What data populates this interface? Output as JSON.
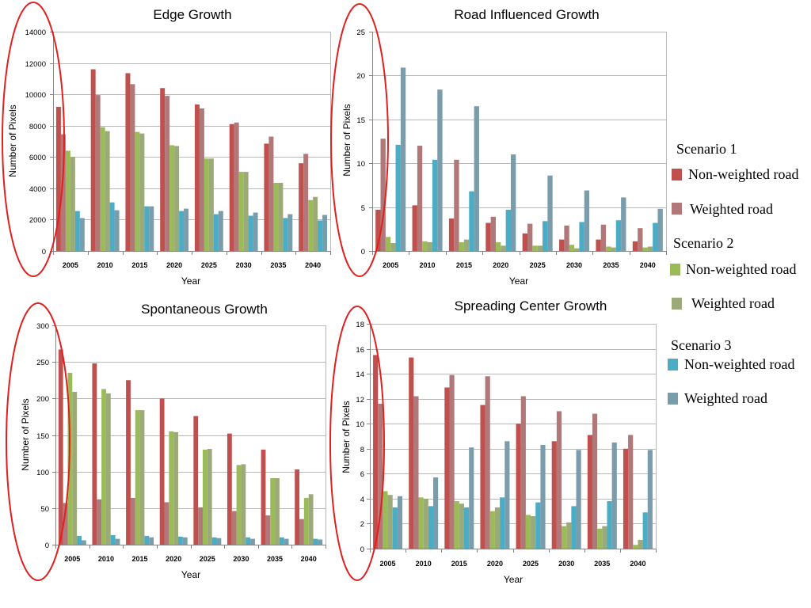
{
  "chart_data": [
    {
      "type": "bar",
      "title": "Edge Growth",
      "xlabel": "Year",
      "ylabel": "Number of Pixels",
      "categories": [
        "2005",
        "2010",
        "2015",
        "2020",
        "2025",
        "2030",
        "2035",
        "2040"
      ],
      "ylim": [
        0,
        14000
      ],
      "yticks": [
        0,
        2000,
        4000,
        6000,
        8000,
        10000,
        12000,
        14000
      ],
      "grid": true,
      "legend": "right",
      "series": [
        {
          "scenario": "Scenario 1",
          "name": "Non-weighted road",
          "color": "#c0504d",
          "values": [
            9200,
            11600,
            11350,
            10400,
            9350,
            8100,
            6850,
            5600
          ]
        },
        {
          "scenario": "Scenario 1",
          "name": "Weighted road",
          "color": "#b07878",
          "values": [
            7450,
            9950,
            10650,
            9900,
            9100,
            8200,
            7300,
            6200
          ]
        },
        {
          "scenario": "Scenario 2",
          "name": "Non-weighted road",
          "color": "#9bbb59",
          "values": [
            6400,
            7900,
            7600,
            6750,
            5900,
            5050,
            4350,
            3250
          ]
        },
        {
          "scenario": "Scenario 2",
          "name": "Weighted road",
          "color": "#9baa78",
          "values": [
            6000,
            7650,
            7500,
            6700,
            5900,
            5050,
            4350,
            3450
          ]
        },
        {
          "scenario": "Scenario 3",
          "name": "Non-weighted road",
          "color": "#4bacc6",
          "values": [
            2550,
            3100,
            2850,
            2550,
            2350,
            2250,
            2100,
            1950
          ]
        },
        {
          "scenario": "Scenario 3",
          "name": "Weighted road",
          "color": "#7a9dac",
          "values": [
            2100,
            2600,
            2850,
            2700,
            2550,
            2450,
            2350,
            2300
          ]
        }
      ]
    },
    {
      "type": "bar",
      "title": "Road Influenced Growth",
      "xlabel": "Year",
      "ylabel": "Number of Pixels",
      "categories": [
        "2005",
        "2010",
        "2015",
        "2020",
        "2025",
        "2030",
        "2035",
        "2040"
      ],
      "ylim": [
        0,
        25
      ],
      "yticks": [
        0,
        5,
        10,
        15,
        20,
        25
      ],
      "grid": true,
      "legend": "right",
      "series": [
        {
          "scenario": "Scenario 1",
          "name": "Non-weighted road",
          "color": "#c0504d",
          "values": [
            4.7,
            5.2,
            3.7,
            3.2,
            2.0,
            1.3,
            1.3,
            1.1
          ]
        },
        {
          "scenario": "Scenario 1",
          "name": "Weighted road",
          "color": "#b07878",
          "values": [
            12.8,
            12.0,
            10.4,
            3.9,
            3.1,
            2.9,
            3.0,
            2.6
          ]
        },
        {
          "scenario": "Scenario 2",
          "name": "Non-weighted road",
          "color": "#9bbb59",
          "values": [
            1.6,
            1.1,
            1.0,
            1.0,
            0.6,
            0.7,
            0.5,
            0.4
          ]
        },
        {
          "scenario": "Scenario 2",
          "name": "Weighted road",
          "color": "#9baa78",
          "values": [
            0.9,
            1.0,
            1.3,
            0.6,
            0.6,
            0.3,
            0.4,
            0.5
          ]
        },
        {
          "scenario": "Scenario 3",
          "name": "Non-weighted road",
          "color": "#4bacc6",
          "values": [
            12.1,
            10.4,
            6.8,
            4.7,
            3.4,
            3.3,
            3.5,
            3.2
          ]
        },
        {
          "scenario": "Scenario 3",
          "name": "Weighted road",
          "color": "#7a9dac",
          "values": [
            20.9,
            18.4,
            16.5,
            11.0,
            8.6,
            6.9,
            6.1,
            4.8
          ]
        }
      ]
    },
    {
      "type": "bar",
      "title": "Spontaneous Growth",
      "xlabel": "Year",
      "ylabel": "Number of Pixels",
      "categories": [
        "2005",
        "2010",
        "2015",
        "2020",
        "2025",
        "2030",
        "2035",
        "2040"
      ],
      "ylim": [
        0,
        300
      ],
      "yticks": [
        0,
        50,
        100,
        150,
        200,
        250,
        300
      ],
      "grid": true,
      "legend": "right",
      "series": [
        {
          "scenario": "Scenario 1",
          "name": "Non-weighted road",
          "color": "#c0504d",
          "values": [
            267,
            248,
            225,
            200,
            176,
            152,
            130,
            103
          ]
        },
        {
          "scenario": "Scenario 1",
          "name": "Weighted road",
          "color": "#b07878",
          "values": [
            57,
            62,
            64,
            58,
            51,
            46,
            40,
            35
          ]
        },
        {
          "scenario": "Scenario 2",
          "name": "Non-weighted road",
          "color": "#9bbb59",
          "values": [
            235,
            213,
            184,
            155,
            130,
            109,
            91,
            64
          ]
        },
        {
          "scenario": "Scenario 2",
          "name": "Weighted road",
          "color": "#9baa78",
          "values": [
            209,
            207,
            184,
            154,
            131,
            110,
            91,
            69
          ]
        },
        {
          "scenario": "Scenario 3",
          "name": "Non-weighted road",
          "color": "#4bacc6",
          "values": [
            12,
            13,
            12,
            11,
            10,
            10,
            10,
            8
          ]
        },
        {
          "scenario": "Scenario 3",
          "name": "Weighted road",
          "color": "#7a9dac",
          "values": [
            6,
            8,
            10,
            10,
            9,
            8,
            8,
            7
          ]
        }
      ]
    },
    {
      "type": "bar",
      "title": "Spreading Center Growth",
      "xlabel": "Year",
      "ylabel": "Number of Pixels",
      "categories": [
        "2005",
        "2010",
        "2015",
        "2020",
        "2025",
        "2030",
        "2035",
        "2040"
      ],
      "ylim": [
        0,
        18
      ],
      "yticks": [
        0,
        2,
        4,
        6,
        8,
        10,
        12,
        14,
        16,
        18
      ],
      "grid": true,
      "legend": "right",
      "series": [
        {
          "scenario": "Scenario 1",
          "name": "Non-weighted road",
          "color": "#c0504d",
          "values": [
            15.5,
            15.3,
            12.9,
            11.5,
            10.0,
            8.6,
            9.1,
            8.0
          ]
        },
        {
          "scenario": "Scenario 1",
          "name": "Weighted road",
          "color": "#b07878",
          "values": [
            11.6,
            12.2,
            13.9,
            13.8,
            12.2,
            11.0,
            10.8,
            9.1
          ]
        },
        {
          "scenario": "Scenario 2",
          "name": "Non-weighted road",
          "color": "#9bbb59",
          "values": [
            4.6,
            4.1,
            3.8,
            3.0,
            2.7,
            1.8,
            1.6,
            0.3
          ]
        },
        {
          "scenario": "Scenario 2",
          "name": "Weighted road",
          "color": "#9baa78",
          "values": [
            4.3,
            4.0,
            3.6,
            3.3,
            2.6,
            2.1,
            1.8,
            0.7
          ]
        },
        {
          "scenario": "Scenario 3",
          "name": "Non-weighted road",
          "color": "#4bacc6",
          "values": [
            3.3,
            3.4,
            3.3,
            4.1,
            3.7,
            3.4,
            3.8,
            2.9
          ]
        },
        {
          "scenario": "Scenario 3",
          "name": "Weighted road",
          "color": "#7a9dac",
          "values": [
            4.2,
            5.7,
            8.1,
            8.6,
            8.3,
            7.9,
            8.5,
            7.9
          ]
        }
      ]
    }
  ],
  "annotation_color": "#e0201f"
}
